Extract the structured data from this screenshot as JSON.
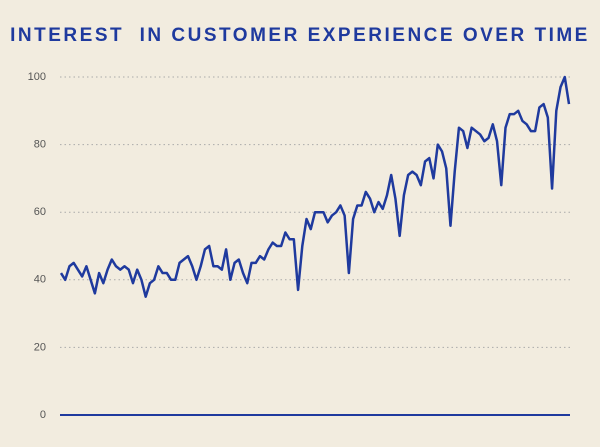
{
  "chart_data": {
    "type": "line",
    "title": "INTEREST  IN CUSTOMER EXPERIENCE OVER TIME",
    "color": "#1f3a9e",
    "ylim": [
      0,
      100
    ],
    "yticks": [
      0,
      20,
      40,
      60,
      80,
      100
    ],
    "grid": true,
    "values": [
      42,
      40,
      44,
      45,
      43,
      41,
      44,
      40,
      36,
      42,
      39,
      43,
      46,
      44,
      43,
      44,
      43,
      39,
      43,
      40,
      35,
      39,
      40,
      44,
      42,
      42,
      40,
      40,
      45,
      46,
      47,
      44,
      40,
      44,
      49,
      50,
      44,
      44,
      43,
      49,
      40,
      45,
      46,
      42,
      39,
      45,
      45,
      47,
      46,
      49,
      51,
      50,
      50,
      54,
      52,
      52,
      37,
      50,
      58,
      55,
      60,
      60,
      60,
      57,
      59,
      60,
      62,
      59,
      42,
      58,
      62,
      62,
      66,
      64,
      60,
      63,
      61,
      65,
      71,
      64,
      53,
      65,
      71,
      72,
      71,
      68,
      75,
      76,
      70,
      80,
      78,
      73,
      56,
      72,
      85,
      84,
      79,
      85,
      84,
      83,
      81,
      82,
      86,
      81,
      68,
      85,
      89,
      89,
      90,
      87,
      86,
      84,
      84,
      91,
      92,
      88,
      67,
      90,
      97,
      100,
      92
    ]
  }
}
